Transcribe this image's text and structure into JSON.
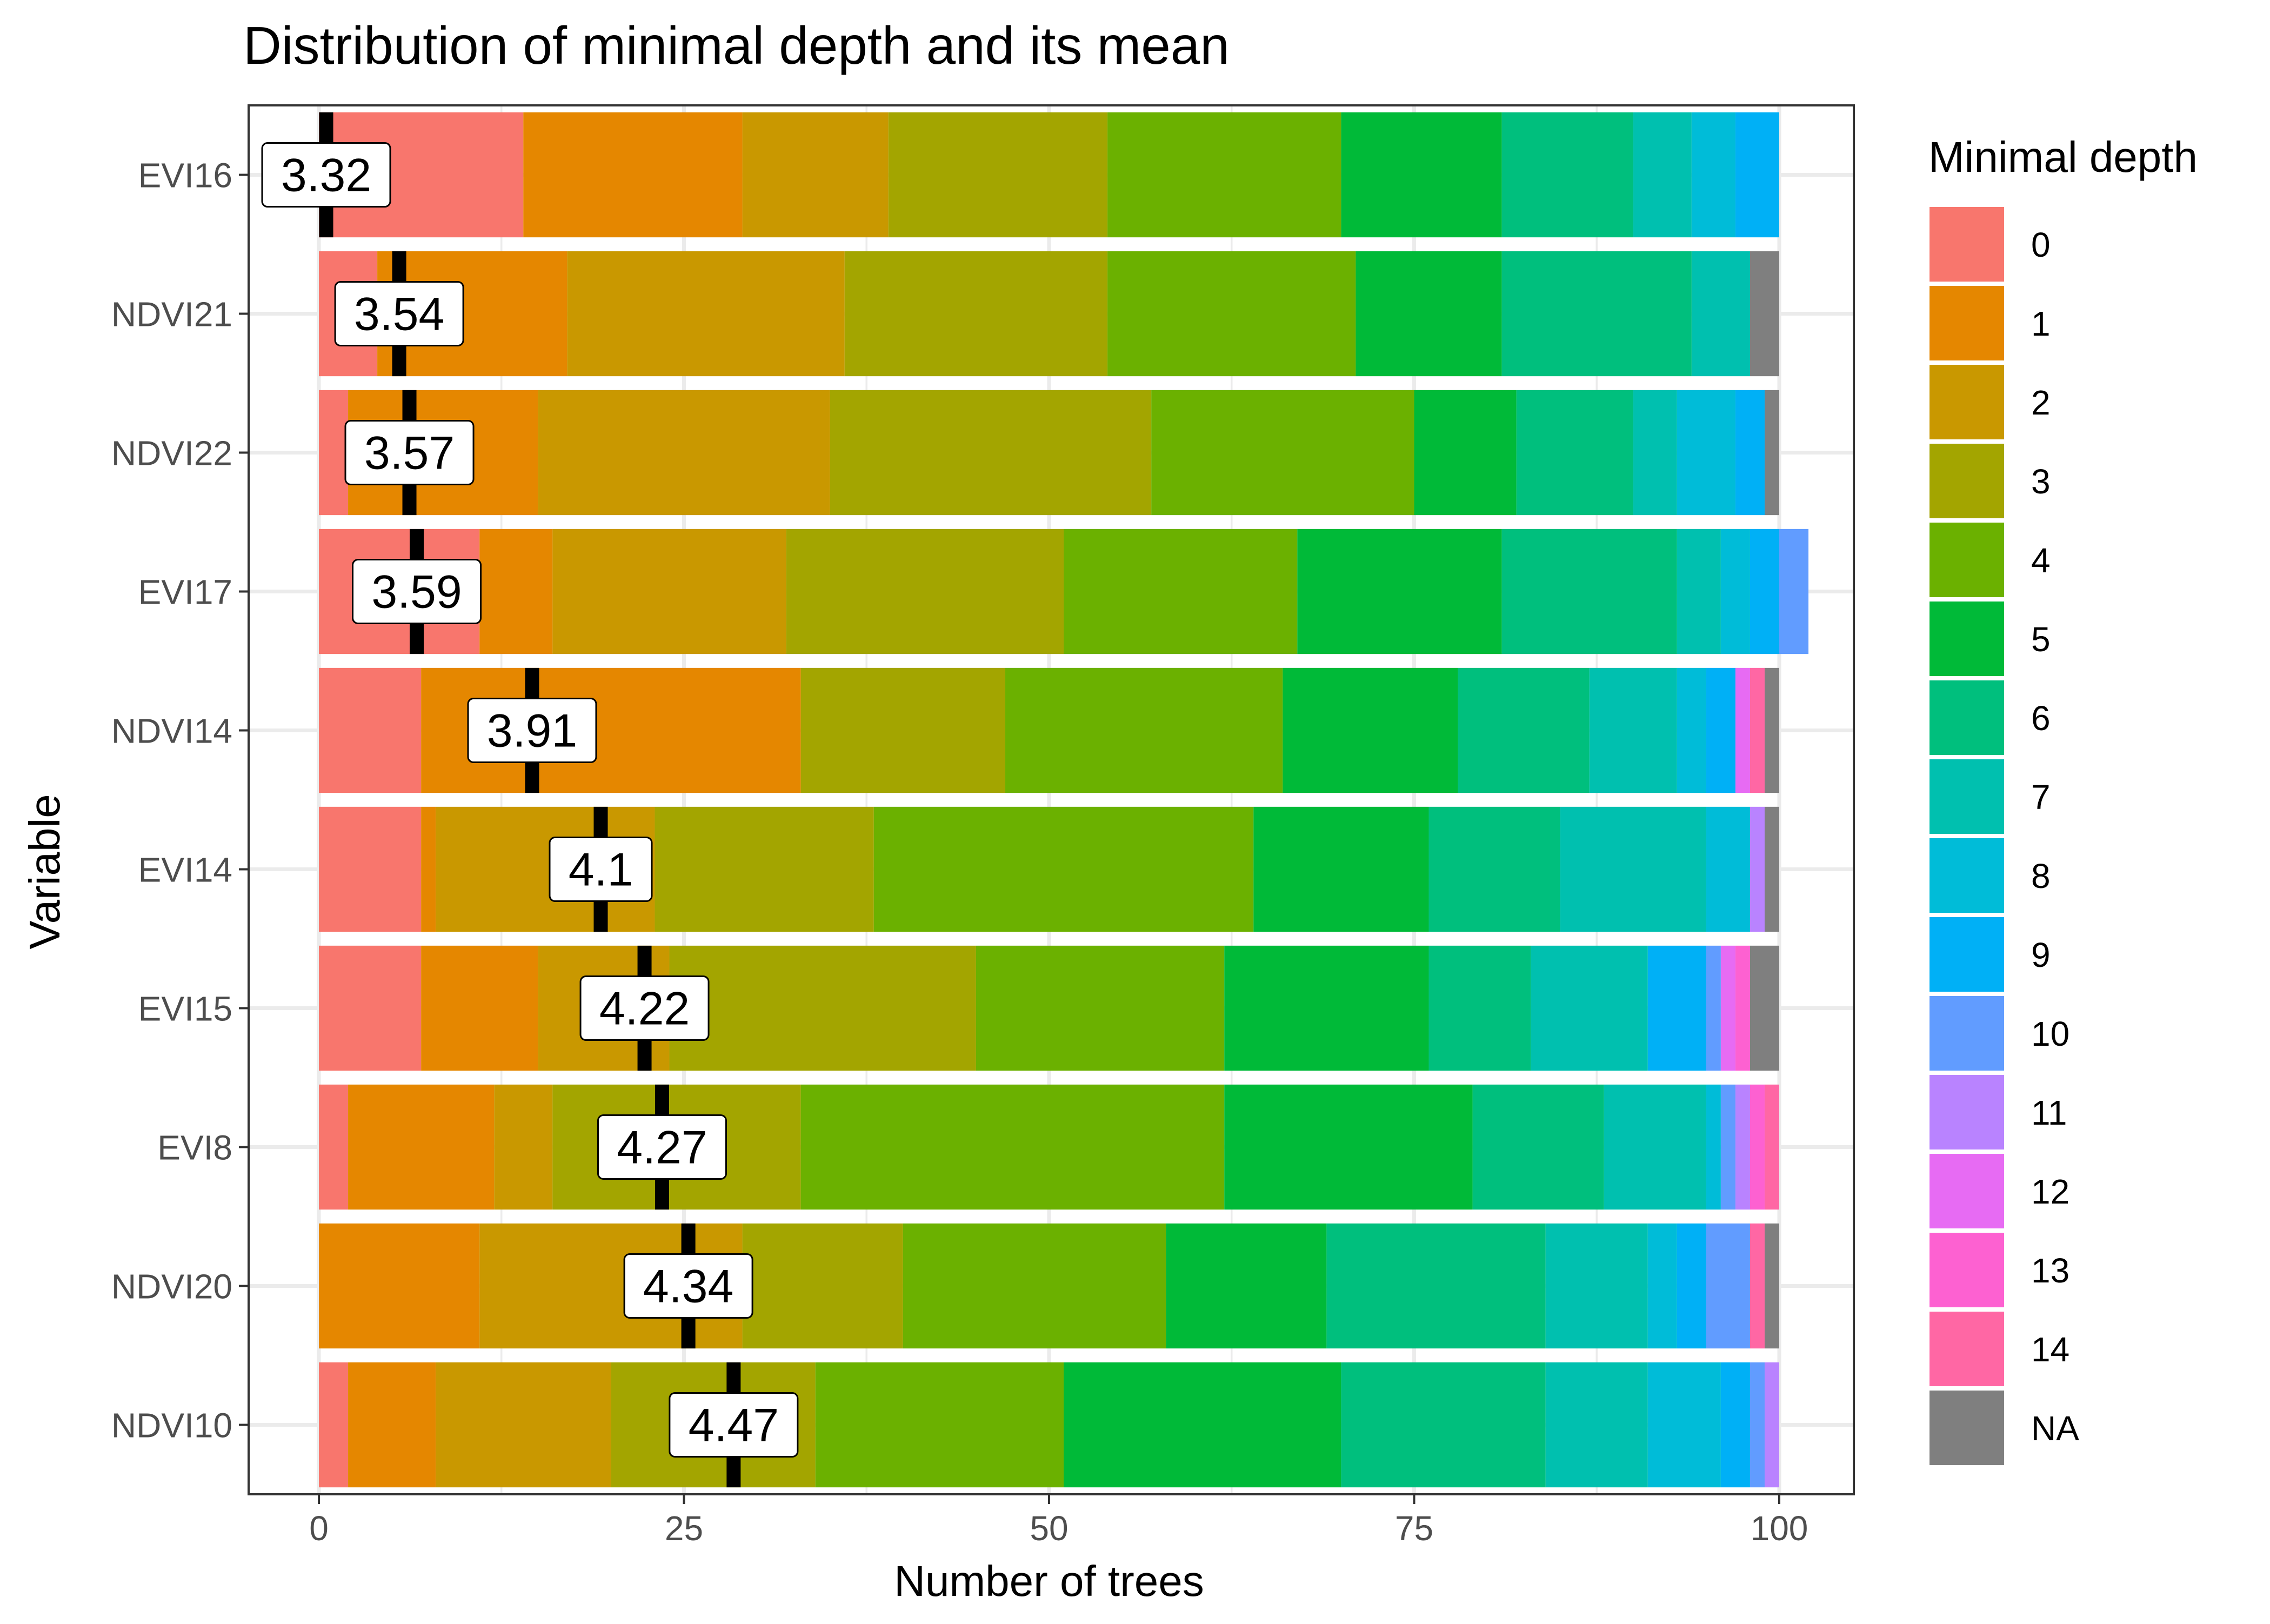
{
  "chart_data": {
    "type": "bar",
    "orientation": "horizontal",
    "stacked": true,
    "title": "Distribution of minimal depth and its mean",
    "xlabel": "Number of trees",
    "ylabel": "Variable",
    "xlim": [
      0,
      100
    ],
    "xticks": [
      0,
      25,
      50,
      75,
      100
    ],
    "grid": true,
    "legend_position": "right",
    "legend": {
      "title": "Minimal depth",
      "entries": [
        "0",
        "1",
        "2",
        "3",
        "4",
        "5",
        "6",
        "7",
        "8",
        "9",
        "10",
        "11",
        "12",
        "13",
        "14",
        "NA"
      ],
      "colors": [
        "#F8766D",
        "#E58700",
        "#C99800",
        "#A3A500",
        "#6BB100",
        "#00BA38",
        "#00BF7D",
        "#00C0AF",
        "#00BCD8",
        "#00B0F6",
        "#619CFF",
        "#B983FF",
        "#E76BF3",
        "#FD61D1",
        "#FF67A4",
        "#7F7F7F"
      ]
    },
    "categories": [
      "EVI16",
      "NDVI21",
      "NDVI22",
      "EVI17",
      "NDVI14",
      "EVI14",
      "EVI15",
      "EVI8",
      "NDVI20",
      "NDVI10"
    ],
    "mean_depth": [
      3.32,
      3.54,
      3.57,
      3.59,
      3.91,
      4.1,
      4.22,
      4.27,
      4.34,
      4.47
    ],
    "mean_marker_x": [
      0.5,
      5.5,
      6.2,
      6.7,
      14.6,
      19.3,
      22.3,
      23.5,
      25.3,
      28.4
    ],
    "series": [
      {
        "name": "0",
        "values": [
          14,
          4,
          2,
          11,
          7,
          7,
          7,
          2,
          0,
          2
        ]
      },
      {
        "name": "1",
        "values": [
          15,
          13,
          13,
          5,
          26,
          1,
          8,
          10,
          11,
          6
        ]
      },
      {
        "name": "2",
        "values": [
          10,
          19,
          20,
          16,
          0,
          15,
          9,
          4,
          18,
          12
        ]
      },
      {
        "name": "3",
        "values": [
          15,
          18,
          22,
          19,
          14,
          15,
          21,
          17,
          11,
          14
        ]
      },
      {
        "name": "4",
        "values": [
          16,
          17,
          18,
          16,
          19,
          26,
          17,
          29,
          18,
          17
        ]
      },
      {
        "name": "5",
        "values": [
          11,
          10,
          7,
          14,
          12,
          12,
          14,
          17,
          11,
          19
        ]
      },
      {
        "name": "6",
        "values": [
          9,
          13,
          8,
          12,
          9,
          9,
          7,
          9,
          15,
          14
        ]
      },
      {
        "name": "7",
        "values": [
          4,
          4,
          3,
          3,
          6,
          10,
          8,
          7,
          7,
          7
        ]
      },
      {
        "name": "8",
        "values": [
          3,
          0,
          4,
          2,
          2,
          3,
          0,
          1,
          2,
          5
        ]
      },
      {
        "name": "9",
        "values": [
          3,
          0,
          2,
          2,
          2,
          0,
          4,
          0,
          2,
          2
        ]
      },
      {
        "name": "10",
        "values": [
          0,
          0,
          0,
          2,
          0,
          0,
          1,
          1,
          3,
          1
        ]
      },
      {
        "name": "11",
        "values": [
          0,
          0,
          0,
          0,
          0,
          1,
          0,
          1,
          0,
          1
        ]
      },
      {
        "name": "12",
        "values": [
          0,
          0,
          0,
          0,
          1,
          0,
          1,
          0,
          0,
          0
        ]
      },
      {
        "name": "13",
        "values": [
          0,
          0,
          0,
          0,
          0,
          0,
          1,
          1,
          0,
          0
        ]
      },
      {
        "name": "14",
        "values": [
          0,
          0,
          0,
          0,
          1,
          0,
          0,
          1,
          1,
          0
        ]
      },
      {
        "name": "NA",
        "values": [
          0,
          2,
          1,
          0,
          1,
          1,
          2,
          0,
          1,
          0
        ]
      }
    ]
  }
}
